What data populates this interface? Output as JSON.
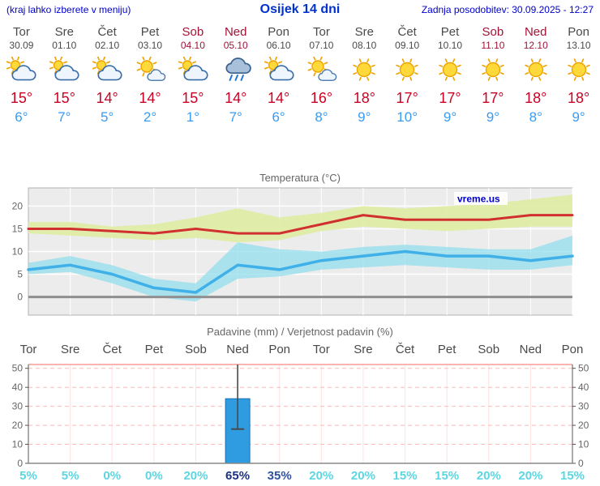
{
  "header": {
    "left_note": "(kraj lahko izberete v meniju)",
    "title": "Osijek 14 dni",
    "updated": "Zadnja posodobitev: 30.09.2025 - 12:27"
  },
  "days": [
    {
      "name": "Tor",
      "date": "30.09",
      "weekend": false,
      "icon": "partly-cloudy",
      "high": "15°",
      "low": "6°"
    },
    {
      "name": "Sre",
      "date": "01.10",
      "weekend": false,
      "icon": "partly-cloudy",
      "high": "15°",
      "low": "7°"
    },
    {
      "name": "Čet",
      "date": "02.10",
      "weekend": false,
      "icon": "partly-cloudy",
      "high": "14°",
      "low": "5°"
    },
    {
      "name": "Pet",
      "date": "03.10",
      "weekend": false,
      "icon": "mostly-sunny",
      "high": "14°",
      "low": "2°"
    },
    {
      "name": "Sob",
      "date": "04.10",
      "weekend": true,
      "icon": "partly-cloudy",
      "high": "15°",
      "low": "1°"
    },
    {
      "name": "Ned",
      "date": "05.10",
      "weekend": true,
      "icon": "rain",
      "high": "14°",
      "low": "7°"
    },
    {
      "name": "Pon",
      "date": "06.10",
      "weekend": false,
      "icon": "partly-cloudy",
      "high": "14°",
      "low": "6°"
    },
    {
      "name": "Tor",
      "date": "07.10",
      "weekend": false,
      "icon": "mostly-sunny",
      "high": "16°",
      "low": "8°"
    },
    {
      "name": "Sre",
      "date": "08.10",
      "weekend": false,
      "icon": "sunny",
      "high": "18°",
      "low": "9°"
    },
    {
      "name": "Čet",
      "date": "09.10",
      "weekend": false,
      "icon": "sunny",
      "high": "17°",
      "low": "10°"
    },
    {
      "name": "Pet",
      "date": "10.10",
      "weekend": false,
      "icon": "sunny",
      "high": "17°",
      "low": "9°"
    },
    {
      "name": "Sob",
      "date": "11.10",
      "weekend": true,
      "icon": "sunny",
      "high": "17°",
      "low": "9°"
    },
    {
      "name": "Ned",
      "date": "12.10",
      "weekend": true,
      "icon": "sunny",
      "high": "18°",
      "low": "8°"
    },
    {
      "name": "Pon",
      "date": "13.10",
      "weekend": false,
      "icon": "sunny",
      "high": "18°",
      "low": "9°"
    }
  ],
  "chart_data": [
    {
      "type": "line",
      "title": "Temperatura (°C)",
      "watermark": "vreme.us",
      "categories": [
        "Tor 30.09",
        "Sre 01.10",
        "Čet 02.10",
        "Pet 03.10",
        "Sob 04.10",
        "Ned 05.10",
        "Pon 06.10",
        "Tor 07.10",
        "Sre 08.10",
        "Čet 09.10",
        "Pet 10.10",
        "Sob 11.10",
        "Ned 12.10",
        "Pon 13.10"
      ],
      "ylim": [
        -4,
        24
      ],
      "yticks": [
        0,
        5,
        10,
        15,
        20
      ],
      "grid": true,
      "legend": "none",
      "series": [
        {
          "name": "max-temp-line",
          "color": "#d03030",
          "values": [
            15,
            15,
            14.5,
            14,
            15,
            14,
            14,
            16,
            18,
            17,
            17,
            17,
            18,
            18
          ]
        },
        {
          "name": "min-temp-line",
          "color": "#3fb0e8",
          "values": [
            6,
            7,
            5,
            2,
            1,
            7,
            6,
            8,
            9,
            10,
            9,
            9,
            8,
            9
          ]
        }
      ],
      "bands": [
        {
          "name": "max-temp-band",
          "color": "#dfeda6",
          "upper": [
            16.5,
            16.5,
            15.5,
            16,
            17.5,
            19.5,
            17.5,
            18.5,
            20,
            19.5,
            20,
            20.5,
            21.5,
            22.5
          ],
          "lower": [
            14,
            13.5,
            13,
            12.5,
            13,
            12,
            12.5,
            14.5,
            15.5,
            15,
            14.5,
            15,
            15.5,
            15.5
          ]
        },
        {
          "name": "min-temp-band",
          "color": "#8fdcec",
          "upper": [
            7.5,
            9,
            7,
            4,
            3,
            12,
            10.5,
            10,
            11,
            11.5,
            11,
            10.5,
            10.5,
            13.5
          ],
          "lower": [
            5,
            5.5,
            3,
            0,
            -1,
            4,
            4.5,
            6,
            6.5,
            7,
            6.5,
            6,
            6,
            7
          ]
        }
      ]
    },
    {
      "type": "bar",
      "title": "Padavine (mm) / Verjetnost padavin (%)",
      "categories": [
        "Tor",
        "Sre",
        "Čet",
        "Pet",
        "Sob",
        "Ned",
        "Pon",
        "Tor",
        "Sre",
        "Čet",
        "Pet",
        "Sob",
        "Ned",
        "Pon"
      ],
      "weekend_flags": [
        false,
        false,
        false,
        false,
        true,
        true,
        false,
        false,
        false,
        false,
        false,
        true,
        true,
        false
      ],
      "ylim": [
        0,
        52
      ],
      "yticks": [
        0,
        10,
        20,
        30,
        40,
        50
      ],
      "values_mm": [
        0,
        0,
        0,
        0,
        0,
        34,
        0,
        0,
        0,
        0,
        0,
        0,
        0,
        0
      ],
      "whisker": {
        "index": 5,
        "low": 18,
        "high": 52
      },
      "probabilities": [
        "5%",
        "5%",
        "0%",
        "0%",
        "20%",
        "65%",
        "35%",
        "20%",
        "20%",
        "15%",
        "15%",
        "20%",
        "20%",
        "15%"
      ],
      "bar_color": "#2f9be0"
    }
  ],
  "colors": {
    "header_blue": "#0000cc",
    "title_blue": "#0033cc",
    "weekday_gray": "#4a4a4a",
    "weekend_red": "#a01236",
    "high_temp_red": "#cc0022",
    "low_temp_blue": "#3a9bf0",
    "prob_low": "#5cd6e0",
    "prob_mid": "#31519f",
    "prob_high": "#1d3282"
  }
}
